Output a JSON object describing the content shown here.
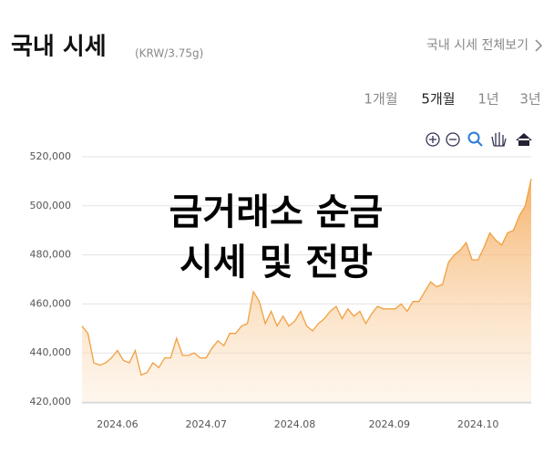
{
  "header": {
    "title": "국내 시세",
    "unit": "(KRW/3.75g)",
    "link": "국내 시세 전체보기"
  },
  "periods": [
    "1개월",
    "5개월",
    "1년",
    "3년"
  ],
  "overlay": [
    "금거래소 순금",
    "시세 및 전망"
  ],
  "chart_data": {
    "type": "area",
    "color": "#f0a040",
    "categories": [
      null,
      null,
      null,
      null,
      null,
      null,
      "2024.06",
      null,
      null,
      null,
      null,
      null,
      null,
      null,
      null,
      null,
      null,
      null,
      null,
      null,
      null,
      "2024.07",
      null,
      null,
      null,
      null,
      null,
      null,
      null,
      null,
      null,
      null,
      null,
      null,
      null,
      null,
      "2024.08",
      null,
      null,
      null,
      null,
      null,
      null,
      null,
      null,
      null,
      null,
      null,
      null,
      null,
      null,
      null,
      "2024.09",
      null,
      null,
      null,
      null,
      null,
      null,
      null,
      null,
      null,
      null,
      null,
      null,
      null,
      null,
      "2024.10",
      null,
      null,
      null,
      null,
      null,
      null,
      null,
      null,
      null
    ],
    "values": [
      451000,
      448000,
      436000,
      435000,
      436000,
      438000,
      441000,
      437000,
      436000,
      441000,
      431000,
      432000,
      436000,
      434000,
      438000,
      438000,
      446000,
      439000,
      439000,
      440000,
      438000,
      438000,
      442000,
      445000,
      443000,
      448000,
      448000,
      451000,
      452000,
      465000,
      461000,
      452000,
      457000,
      451000,
      455000,
      451000,
      453000,
      457000,
      451000,
      449000,
      452000,
      454000,
      457000,
      459000,
      454000,
      458000,
      455000,
      457000,
      452000,
      456000,
      459000,
      458000,
      458000,
      458000,
      460000,
      457000,
      461000,
      461000,
      465000,
      469000,
      467000,
      468000,
      477000,
      480000,
      482000,
      485000,
      478000,
      478000,
      483000,
      489000,
      486000,
      484000,
      489000,
      490000,
      496000,
      500000,
      511000
    ],
    "ylim": [
      420000,
      520000
    ],
    "yticks": [
      {
        "value": 420000,
        "label": "420,000"
      },
      {
        "value": 440000,
        "label": "440,000"
      },
      {
        "value": 460000,
        "label": "460,000"
      },
      {
        "value": 480000,
        "label": "480,000"
      },
      {
        "value": 500000,
        "label": "500,000"
      },
      {
        "value": 520000,
        "label": "520,000"
      }
    ],
    "grid": true
  }
}
